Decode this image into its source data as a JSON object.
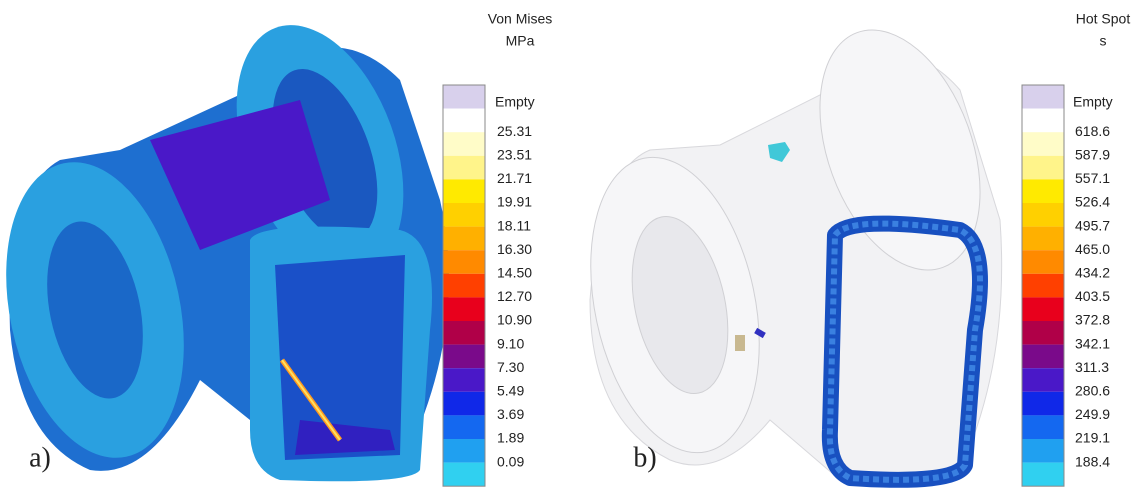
{
  "panels": [
    {
      "label": "a)",
      "legend": {
        "title": [
          "Von Mises",
          "MPa"
        ],
        "empty_label": "Empty",
        "labels": [
          "25.31",
          "23.51",
          "21.71",
          "19.91",
          "18.11",
          "16.30",
          "14.50",
          "12.70",
          "10.90",
          "9.10",
          "7.30",
          "5.49",
          "3.69",
          "1.89",
          "0.09"
        ],
        "colors": [
          "#d8d0ec",
          "#ffffff",
          "#fffcc8",
          "#fff48a",
          "#ffea00",
          "#ffd000",
          "#ffb000",
          "#ff8a00",
          "#ff4000",
          "#e8001c",
          "#b00048",
          "#7a0a8a",
          "#4a18c8",
          "#1028e8",
          "#1468f0",
          "#20a0f0",
          "#30d0f0"
        ]
      }
    },
    {
      "label": "b)",
      "legend": {
        "title": [
          "Hot Spot",
          "s"
        ],
        "empty_label": "Empty",
        "labels": [
          "618.6",
          "587.9",
          "557.1",
          "526.4",
          "495.7",
          "465.0",
          "434.2",
          "403.5",
          "372.8",
          "342.1",
          "311.3",
          "280.6",
          "249.9",
          "219.1",
          "188.4"
        ],
        "colors": [
          "#d8d0ec",
          "#ffffff",
          "#fffcc8",
          "#fff48a",
          "#ffea00",
          "#ffd000",
          "#ffb000",
          "#ff8a00",
          "#ff4000",
          "#e8001c",
          "#b00048",
          "#7a0a8a",
          "#4a18c8",
          "#1028e8",
          "#1468f0",
          "#20a0f0",
          "#30d0f0"
        ]
      }
    }
  ]
}
